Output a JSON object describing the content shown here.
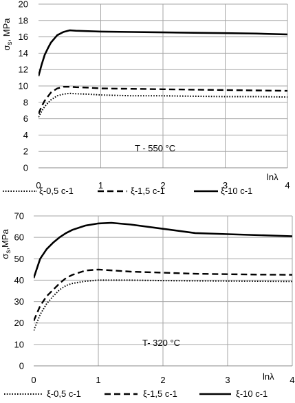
{
  "chart_data": [
    {
      "type": "line",
      "ylabel_main": "σ",
      "ylabel_sub": "s",
      "ylabel_tail": ", MPa",
      "xlabel": "lnλ",
      "annotation": "T -  550 °C",
      "xlim": [
        0,
        4
      ],
      "ylim": [
        0,
        20
      ],
      "x_ticks": [
        "0",
        "1",
        "2",
        "3",
        "4"
      ],
      "y_ticks": [
        "0",
        "2",
        "4",
        "6",
        "8",
        "10",
        "12",
        "14",
        "16",
        "18",
        "20"
      ],
      "grid": "horizontal",
      "legend_position": "bottom",
      "series": [
        {
          "name": "ξ-0,5 c-1",
          "style": "dotted",
          "x": [
            0,
            0.05,
            0.1,
            0.2,
            0.3,
            0.4,
            0.5,
            0.6,
            0.8,
            1.0,
            1.5,
            2.0,
            2.5,
            3.0,
            3.5,
            4.0
          ],
          "y": [
            6.2,
            6.9,
            7.5,
            8.3,
            8.8,
            9.0,
            9.1,
            9.05,
            9.0,
            8.9,
            8.8,
            8.8,
            8.75,
            8.7,
            8.7,
            8.65
          ]
        },
        {
          "name": "ξ-1,5 c-1",
          "style": "dashed",
          "x": [
            0,
            0.05,
            0.1,
            0.2,
            0.3,
            0.4,
            0.5,
            0.6,
            0.8,
            1.0,
            1.5,
            2.0,
            2.5,
            3.0,
            3.5,
            4.0
          ],
          "y": [
            6.6,
            7.5,
            8.2,
            9.2,
            9.7,
            9.9,
            9.9,
            9.85,
            9.8,
            9.7,
            9.65,
            9.6,
            9.55,
            9.5,
            9.45,
            9.4
          ]
        },
        {
          "name": "ξ-10 c-1",
          "style": "solid",
          "x": [
            0,
            0.05,
            0.1,
            0.15,
            0.2,
            0.3,
            0.4,
            0.5,
            0.6,
            0.8,
            1.0,
            1.5,
            2.0,
            2.5,
            3.0,
            3.5,
            4.0
          ],
          "y": [
            11.2,
            12.6,
            13.8,
            14.6,
            15.3,
            16.2,
            16.6,
            16.8,
            16.75,
            16.7,
            16.65,
            16.6,
            16.55,
            16.5,
            16.45,
            16.4,
            16.3
          ]
        }
      ]
    },
    {
      "type": "line",
      "ylabel_main": "σ",
      "ylabel_sub": "s",
      "ylabel_tail": ",MPa",
      "xlabel": "lnλ",
      "annotation": "T- 320 °C",
      "xlim": [
        0,
        4
      ],
      "ylim": [
        0,
        70
      ],
      "x_ticks": [
        "0",
        "1",
        "2",
        "3",
        "4"
      ],
      "y_ticks": [
        "0",
        "10",
        "20",
        "30",
        "40",
        "50",
        "60",
        "70"
      ],
      "grid": "horizontal",
      "legend_position": "bottom",
      "series": [
        {
          "name": "ξ-0,5 c-1",
          "style": "dotted",
          "x": [
            0,
            0.1,
            0.2,
            0.3,
            0.4,
            0.5,
            0.6,
            0.8,
            1.0,
            1.5,
            2.0,
            2.5,
            3.0,
            3.5,
            4.0
          ],
          "y": [
            16.5,
            24,
            29,
            32.5,
            35.5,
            37.5,
            38.5,
            39.5,
            40,
            40,
            39.8,
            39.7,
            39.6,
            39.5,
            39.4
          ]
        },
        {
          "name": "ξ-1,5 c-1",
          "style": "dashed",
          "x": [
            0,
            0.1,
            0.2,
            0.3,
            0.4,
            0.5,
            0.6,
            0.8,
            1.0,
            1.5,
            2.0,
            2.5,
            3.0,
            3.5,
            4.0
          ],
          "y": [
            21,
            28,
            32.5,
            35.5,
            38.5,
            41,
            42.5,
            44.5,
            45,
            44,
            43.5,
            43,
            42.8,
            42.6,
            42.5
          ]
        },
        {
          "name": "ξ-10 c-1",
          "style": "solid",
          "x": [
            0,
            0.1,
            0.2,
            0.3,
            0.4,
            0.5,
            0.6,
            0.8,
            1.0,
            1.2,
            1.5,
            2.0,
            2.5,
            3.0,
            3.5,
            4.0
          ],
          "y": [
            41,
            50,
            54.5,
            57.5,
            60,
            62,
            63.5,
            65.5,
            66.5,
            66.8,
            66,
            64,
            62,
            61.5,
            61,
            60.5
          ]
        }
      ]
    }
  ]
}
